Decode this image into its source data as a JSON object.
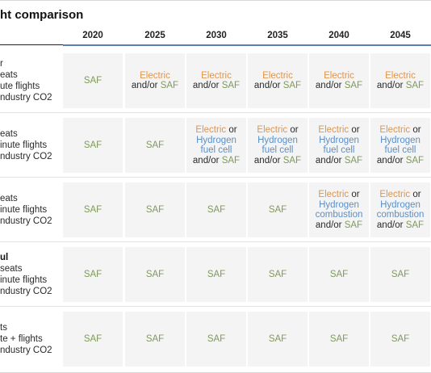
{
  "title": "ht comparison",
  "colors": {
    "saf": "#7f9a5a",
    "electric": "#e0944a",
    "hydrogen": "#5b8fc7",
    "cell_bg": "#f4f4f4"
  },
  "years": [
    "2020",
    "2025",
    "2030",
    "2035",
    "2040",
    "2045"
  ],
  "rows": [
    {
      "label_lines": [
        "r",
        "eats",
        "ute flights",
        "ndustry CO2"
      ],
      "label_bold_first": false,
      "cells": [
        {
          "type": "saf",
          "saf": "SAF"
        },
        {
          "type": "elec",
          "electric": "Electric",
          "andor": "and/or",
          "saf": "SAF"
        },
        {
          "type": "elec",
          "electric": "Electric",
          "andor": "and/or",
          "saf": "SAF"
        },
        {
          "type": "elec",
          "electric": "Electric",
          "andor": "and/or",
          "saf": "SAF"
        },
        {
          "type": "elec",
          "electric": "Electric",
          "andor": "and/or",
          "saf": "SAF"
        },
        {
          "type": "elec",
          "electric": "Electric",
          "andor": "and/or",
          "saf": "SAF"
        }
      ]
    },
    {
      "label_lines": [
        "eats",
        "inute flights",
        "ndustry CO2"
      ],
      "label_bold_first": false,
      "cells": [
        {
          "type": "saf",
          "saf": "SAF"
        },
        {
          "type": "saf",
          "saf": "SAF"
        },
        {
          "type": "fuel",
          "electric": "Electric",
          "or": "or",
          "h1": "Hydrogen",
          "h2": "fuel cell",
          "andor": "and/or",
          "saf": "SAF"
        },
        {
          "type": "fuel",
          "electric": "Electric",
          "or": "or",
          "h1": "Hydrogen",
          "h2": "fuel cell",
          "andor": "and/or",
          "saf": "SAF"
        },
        {
          "type": "fuel",
          "electric": "Electric",
          "or": "or",
          "h1": "Hydrogen",
          "h2": "fuel cell",
          "andor": "and/or",
          "saf": "SAF"
        },
        {
          "type": "fuel",
          "electric": "Electric",
          "or": "or",
          "h1": "Hydrogen",
          "h2": "fuel cell",
          "andor": "and/or",
          "saf": "SAF"
        }
      ]
    },
    {
      "label_lines": [
        "eats",
        "inute flights",
        "ndustry CO2"
      ],
      "label_bold_first": false,
      "cells": [
        {
          "type": "saf",
          "saf": "SAF"
        },
        {
          "type": "saf",
          "saf": "SAF"
        },
        {
          "type": "saf",
          "saf": "SAF"
        },
        {
          "type": "saf",
          "saf": "SAF"
        },
        {
          "type": "comb",
          "electric": "Electric",
          "or": "or",
          "h1": "Hydrogen",
          "h2": "combustion",
          "andor": "and/or",
          "saf": "SAF"
        },
        {
          "type": "comb",
          "electric": "Electric",
          "or": "or",
          "h1": "Hydrogen",
          "h2": "combustion",
          "andor": "and/or",
          "saf": "SAF"
        }
      ]
    },
    {
      "label_lines": [
        "ul",
        "seats",
        "inute flights",
        "ndustry CO2"
      ],
      "label_bold_first": true,
      "cells": [
        {
          "type": "saf",
          "saf": "SAF"
        },
        {
          "type": "saf",
          "saf": "SAF"
        },
        {
          "type": "saf",
          "saf": "SAF"
        },
        {
          "type": "saf",
          "saf": "SAF"
        },
        {
          "type": "saf",
          "saf": "SAF"
        },
        {
          "type": "saf",
          "saf": "SAF"
        }
      ]
    },
    {
      "label_lines": [
        "ts",
        "te + flights",
        "ndustry CO2"
      ],
      "label_bold_first": false,
      "cells": [
        {
          "type": "saf",
          "saf": "SAF"
        },
        {
          "type": "saf",
          "saf": "SAF"
        },
        {
          "type": "saf",
          "saf": "SAF"
        },
        {
          "type": "saf",
          "saf": "SAF"
        },
        {
          "type": "saf",
          "saf": "SAF"
        },
        {
          "type": "saf",
          "saf": "SAF"
        }
      ]
    }
  ]
}
